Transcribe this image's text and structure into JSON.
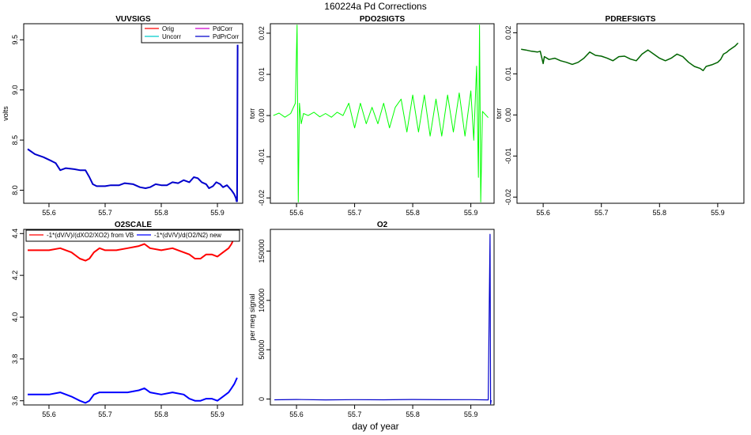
{
  "title": "160224a   Pd Corrections",
  "xlabel": "day of year",
  "chart_data": [
    {
      "type": "line",
      "title": "VUVSIGS",
      "ylabel": "volts",
      "xlim": [
        55.555,
        55.945
      ],
      "ylim": [
        7.87,
        9.66
      ],
      "xticks": [
        55.6,
        55.7,
        55.8,
        55.9
      ],
      "yticks": [
        8.0,
        8.5,
        9.0,
        9.5
      ],
      "ytick_labels": [
        "8.0",
        "8.5",
        "9.0",
        "9.5"
      ],
      "legend": {
        "position": "top-right",
        "columns": 2,
        "entries": [
          {
            "label": "Orig",
            "color": "#ff0000"
          },
          {
            "label": "PdCorr",
            "color": "#cc00cc"
          },
          {
            "label": "Uncorr",
            "color": "#00cccc"
          },
          {
            "label": "PdPrCorr",
            "color": "#0000cc"
          }
        ]
      },
      "series": [
        {
          "name": "PdPrCorr",
          "color": "#0000cc",
          "width": 2,
          "x": [
            55.562,
            55.575,
            55.59,
            55.605,
            55.612,
            55.62,
            55.63,
            55.645,
            55.655,
            55.665,
            55.672,
            55.678,
            55.685,
            55.69,
            55.7,
            55.71,
            55.725,
            55.735,
            55.75,
            55.762,
            55.772,
            55.78,
            55.79,
            55.8,
            55.81,
            55.82,
            55.83,
            55.84,
            55.85,
            55.858,
            55.865,
            55.872,
            55.88,
            55.885,
            55.892,
            55.898,
            55.905,
            55.91,
            55.917,
            55.925,
            55.93,
            55.933,
            55.934,
            55.935,
            55.936
          ],
          "y": [
            8.41,
            8.36,
            8.33,
            8.29,
            8.27,
            8.2,
            8.22,
            8.21,
            8.2,
            8.2,
            8.13,
            8.06,
            8.04,
            8.04,
            8.04,
            8.05,
            8.05,
            8.07,
            8.06,
            8.03,
            8.02,
            8.03,
            8.06,
            8.05,
            8.05,
            8.08,
            8.07,
            8.1,
            8.08,
            8.13,
            8.12,
            8.08,
            8.06,
            8.02,
            8.04,
            8.08,
            8.06,
            8.03,
            8.05,
            8.0,
            7.96,
            7.92,
            7.89,
            7.89,
            9.45
          ]
        }
      ]
    },
    {
      "type": "line",
      "title": "PDO2SIGTS",
      "ylabel": "torr",
      "xlim": [
        55.555,
        55.94
      ],
      "ylim": [
        -0.0213,
        0.0223
      ],
      "xticks": [
        55.6,
        55.7,
        55.8,
        55.9
      ],
      "yticks": [
        -0.02,
        -0.01,
        0.0,
        0.01,
        0.02
      ],
      "ytick_labels": [
        "-0.02",
        "-0.01",
        "0.00",
        "0.01",
        "0.02"
      ],
      "series": [
        {
          "name": "PDO2SIGTS",
          "color": "#00ff00",
          "width": 1,
          "x": [
            55.56,
            55.57,
            55.58,
            55.59,
            55.598,
            55.601,
            55.603,
            55.605,
            55.608,
            55.612,
            55.62,
            55.63,
            55.64,
            55.65,
            55.66,
            55.67,
            55.68,
            55.69,
            55.7,
            55.71,
            55.72,
            55.73,
            55.74,
            55.75,
            55.76,
            55.77,
            55.78,
            55.79,
            55.8,
            55.81,
            55.82,
            55.83,
            55.84,
            55.85,
            55.86,
            55.87,
            55.88,
            55.89,
            55.9,
            55.905,
            55.91,
            55.913,
            55.915,
            55.917,
            55.92,
            55.93
          ],
          "y": [
            0.0,
            0.0006,
            -0.0004,
            0.0005,
            0.003,
            0.022,
            -0.021,
            0.003,
            -0.002,
            0.0005,
            0.0,
            0.0008,
            -0.0003,
            0.0005,
            -0.0004,
            0.0008,
            0.0,
            0.003,
            -0.003,
            0.003,
            -0.002,
            0.002,
            -0.002,
            0.003,
            -0.003,
            0.002,
            0.004,
            -0.004,
            0.005,
            -0.004,
            0.005,
            -0.005,
            0.004,
            -0.005,
            0.005,
            -0.004,
            0.0055,
            -0.005,
            0.006,
            -0.006,
            0.012,
            -0.015,
            0.022,
            -0.021,
            0.001,
            -0.0005
          ]
        }
      ]
    },
    {
      "type": "line",
      "title": "PDREFSIGTS",
      "ylabel": "torr",
      "xlim": [
        55.555,
        55.945
      ],
      "ylim": [
        -0.0215,
        0.0222
      ],
      "xticks": [
        55.6,
        55.7,
        55.8,
        55.9
      ],
      "yticks": [
        -0.02,
        -0.01,
        0.0,
        0.01,
        0.02
      ],
      "ytick_labels": [
        "-0.02",
        "-0.01",
        "0.00",
        "0.01",
        "0.02"
      ],
      "series": [
        {
          "name": "PDREFSIGTS",
          "color": "#006400",
          "width": 1.5,
          "x": [
            55.562,
            55.57,
            55.58,
            55.59,
            55.595,
            55.6,
            55.602,
            55.61,
            55.62,
            55.63,
            55.64,
            55.65,
            55.66,
            55.67,
            55.68,
            55.69,
            55.7,
            55.71,
            55.72,
            55.73,
            55.74,
            55.75,
            55.76,
            55.77,
            55.78,
            55.79,
            55.8,
            55.81,
            55.82,
            55.83,
            55.84,
            55.85,
            55.86,
            55.87,
            55.875,
            55.88,
            55.89,
            55.9,
            55.905,
            55.91,
            55.915,
            55.92,
            55.93,
            55.935
          ],
          "y": [
            0.016,
            0.0158,
            0.0155,
            0.0153,
            0.0155,
            0.0125,
            0.0142,
            0.0135,
            0.0138,
            0.0132,
            0.0128,
            0.0123,
            0.0128,
            0.0138,
            0.0153,
            0.0145,
            0.0143,
            0.0138,
            0.0132,
            0.0142,
            0.0143,
            0.0136,
            0.0132,
            0.0148,
            0.0158,
            0.0148,
            0.0138,
            0.0132,
            0.0138,
            0.0148,
            0.0142,
            0.0128,
            0.0118,
            0.0113,
            0.0108,
            0.0118,
            0.0122,
            0.0128,
            0.0135,
            0.0148,
            0.0152,
            0.0158,
            0.0168,
            0.0175
          ]
        }
      ]
    },
    {
      "type": "line",
      "title": "O2SCALE",
      "ylabel": "",
      "xlim": [
        55.555,
        55.945
      ],
      "ylim": [
        3.58,
        4.42
      ],
      "xticks": [
        55.6,
        55.7,
        55.8,
        55.9
      ],
      "yticks": [
        3.6,
        3.8,
        4.0,
        4.2,
        4.4
      ],
      "ytick_labels": [
        "3.6",
        "3.8",
        "4.0",
        "4.2",
        "4.4"
      ],
      "legend": {
        "position": "top",
        "columns": 2,
        "entries": [
          {
            "label": "-1*(dV/V)/(dXO2/XO2) from VB",
            "color": "#ff0000"
          },
          {
            "label": "-1*(dV/V)/d(O2/N2) new",
            "color": "#0000ff"
          }
        ]
      },
      "series": [
        {
          "name": "-1*(dV/V)/(dXO2/XO2) from VB",
          "color": "#ff0000",
          "width": 2,
          "x": [
            55.562,
            55.58,
            55.6,
            55.62,
            55.64,
            55.655,
            55.665,
            55.672,
            55.68,
            55.69,
            55.7,
            55.72,
            55.74,
            55.76,
            55.77,
            55.78,
            55.8,
            55.82,
            55.84,
            55.85,
            55.86,
            55.87,
            55.88,
            55.89,
            55.9,
            55.91,
            55.92,
            55.925,
            55.93,
            55.935
          ],
          "y": [
            4.32,
            4.32,
            4.32,
            4.33,
            4.31,
            4.28,
            4.27,
            4.28,
            4.31,
            4.33,
            4.32,
            4.32,
            4.33,
            4.34,
            4.35,
            4.33,
            4.32,
            4.33,
            4.31,
            4.3,
            4.28,
            4.28,
            4.3,
            4.3,
            4.29,
            4.31,
            4.33,
            4.35,
            4.38,
            4.4
          ]
        },
        {
          "name": "-1*(dV/V)/d(O2/N2) new",
          "color": "#0000ff",
          "width": 2,
          "x": [
            55.562,
            55.58,
            55.6,
            55.62,
            55.64,
            55.655,
            55.665,
            55.672,
            55.68,
            55.69,
            55.7,
            55.72,
            55.74,
            55.76,
            55.77,
            55.78,
            55.8,
            55.82,
            55.84,
            55.85,
            55.86,
            55.87,
            55.88,
            55.89,
            55.9,
            55.91,
            55.92,
            55.925,
            55.93,
            55.935
          ],
          "y": [
            3.63,
            3.63,
            3.63,
            3.64,
            3.62,
            3.6,
            3.59,
            3.6,
            3.63,
            3.64,
            3.64,
            3.64,
            3.64,
            3.65,
            3.66,
            3.64,
            3.63,
            3.64,
            3.63,
            3.61,
            3.6,
            3.6,
            3.61,
            3.61,
            3.6,
            3.62,
            3.64,
            3.66,
            3.68,
            3.71
          ]
        }
      ]
    },
    {
      "type": "line",
      "title": "O2",
      "ylabel": "per meg signal",
      "xlim": [
        55.555,
        55.94
      ],
      "ylim": [
        -6000,
        172000
      ],
      "xticks": [
        55.6,
        55.7,
        55.8,
        55.9
      ],
      "yticks": [
        0,
        50000,
        100000,
        150000
      ],
      "ytick_labels": [
        "0",
        "50000",
        "100000",
        "150000"
      ],
      "series": [
        {
          "name": "O2",
          "color": "#0000cc",
          "width": 1.2,
          "x": [
            55.562,
            55.6,
            55.65,
            55.7,
            55.75,
            55.8,
            55.85,
            55.9,
            55.93,
            55.933,
            55.934,
            55.935
          ],
          "y": [
            -800,
            -500,
            -900,
            -600,
            -800,
            -500,
            -700,
            -600,
            -900,
            167000,
            -5000,
            -1200
          ]
        }
      ]
    }
  ]
}
